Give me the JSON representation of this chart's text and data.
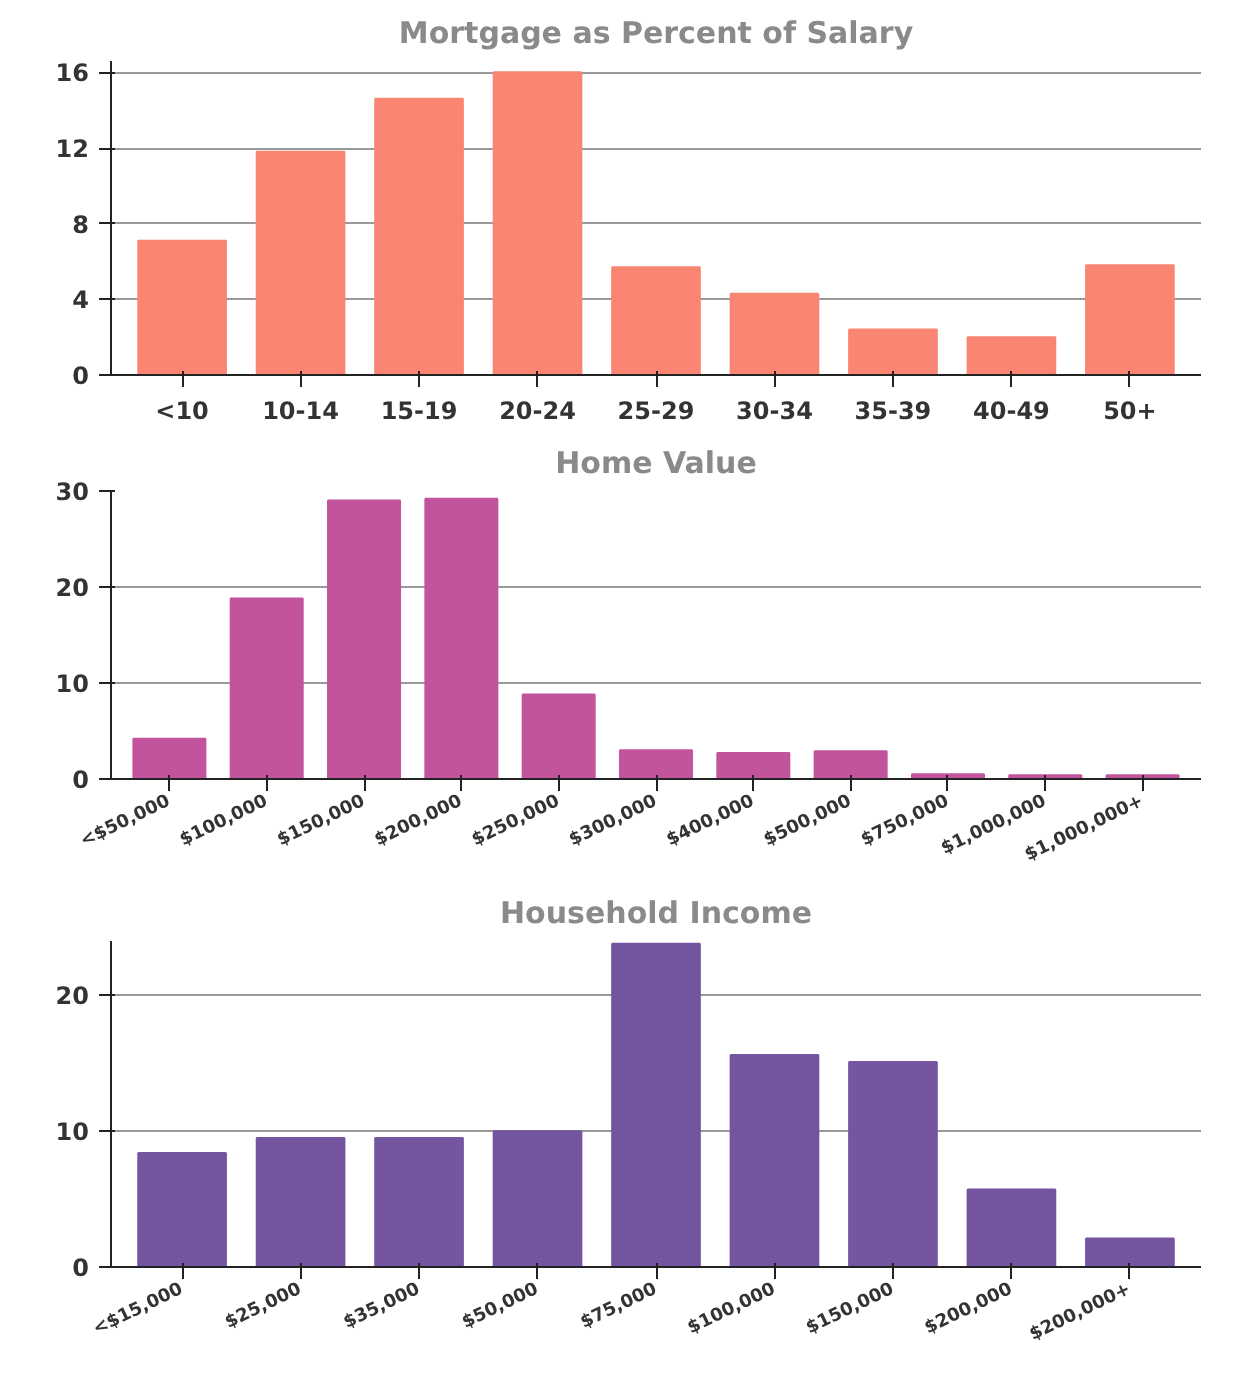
{
  "chart_data": [
    {
      "type": "bar",
      "title": "Mortgage as Percent of Salary",
      "categories": [
        "<10",
        "10-14",
        "15-19",
        "20-24",
        "25-29",
        "30-34",
        "35-39",
        "40-49",
        "50+"
      ],
      "values": [
        7.1,
        11.8,
        14.6,
        16.0,
        5.7,
        4.3,
        2.4,
        2.0,
        5.8
      ],
      "color": "#fa8572",
      "ylim": [
        0,
        16.6
      ],
      "yticks": [
        0,
        4,
        8,
        12,
        16
      ],
      "grid": "y"
    },
    {
      "type": "bar",
      "title": "Home Value",
      "categories": [
        "<$50,000",
        "$100,000",
        "$150,000",
        "$200,000",
        "$250,000",
        "$300,000",
        "$400,000",
        "$500,000",
        "$750,000",
        "$1,000,000",
        "$1,000,000+"
      ],
      "values": [
        4.2,
        18.8,
        29.0,
        29.2,
        8.8,
        3.0,
        2.7,
        2.9,
        0.5,
        0.4,
        0.4
      ],
      "color": "#c2549e",
      "ylim": [
        0,
        30
      ],
      "yticks": [
        0,
        10,
        20,
        30
      ],
      "grid": "y"
    },
    {
      "type": "bar",
      "title": "Household Income",
      "categories": [
        "<$15,000",
        "$25,000",
        "$35,000",
        "$50,000",
        "$75,000",
        "$100,000",
        "$150,000",
        "$200,000",
        "$200,000+"
      ],
      "values": [
        8.4,
        9.5,
        9.5,
        10.0,
        23.8,
        15.6,
        15.1,
        5.7,
        2.1
      ],
      "color": "#7455a0",
      "ylim": [
        0,
        24
      ],
      "yticks": [
        0,
        10,
        20
      ],
      "grid": "y"
    }
  ]
}
